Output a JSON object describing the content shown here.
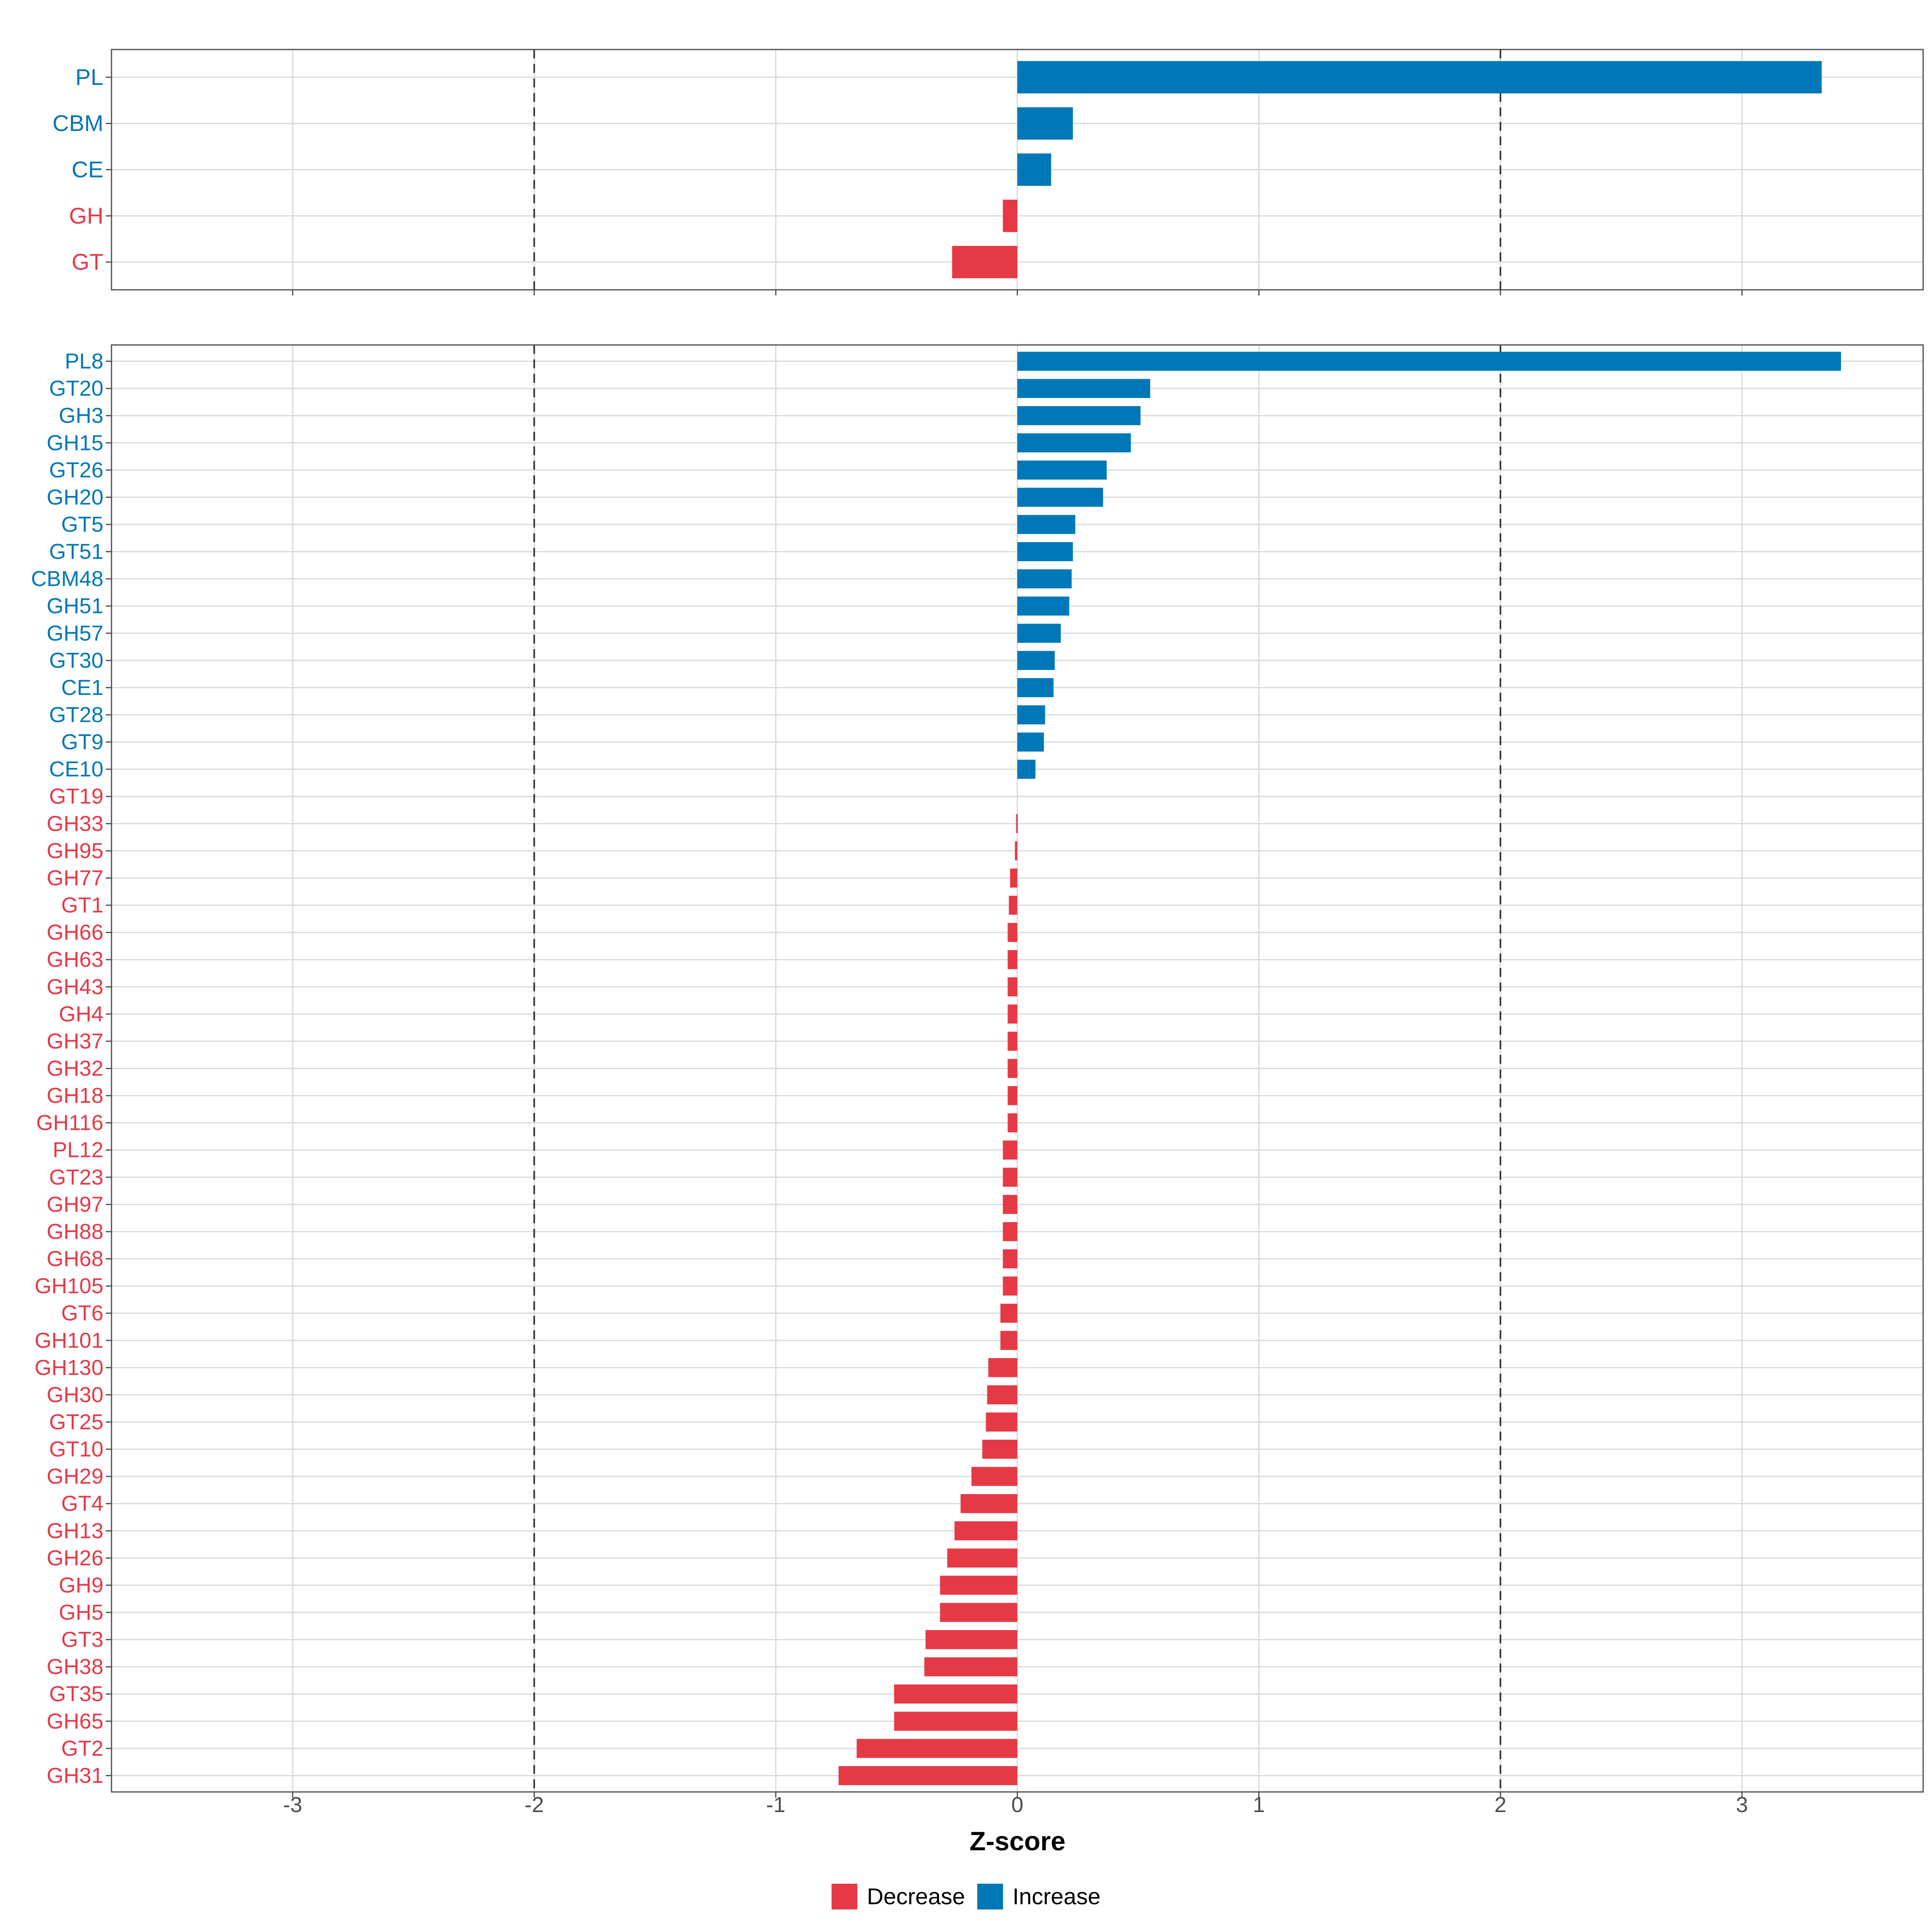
{
  "chart_data": [
    {
      "type": "bar",
      "orientation": "horizontal",
      "categories": [
        "PL",
        "CBM",
        "CE",
        "GH",
        "GT"
      ],
      "values": [
        3.33,
        0.23,
        0.14,
        -0.06,
        -0.27
      ],
      "xlim": [
        -3.75,
        3.75
      ],
      "reference_lines": [
        -2,
        2
      ]
    },
    {
      "type": "bar",
      "orientation": "horizontal",
      "categories": [
        "PL8",
        "GT20",
        "GH3",
        "GH15",
        "GT26",
        "GH20",
        "GT5",
        "GT51",
        "CBM48",
        "GH51",
        "GH57",
        "GT30",
        "CE1",
        "GT28",
        "GT9",
        "CE10",
        "GT19",
        "GH33",
        "GH95",
        "GH77",
        "GT1",
        "GH66",
        "GH63",
        "GH43",
        "GH4",
        "GH37",
        "GH32",
        "GH18",
        "GH116",
        "PL12",
        "GT23",
        "GH97",
        "GH88",
        "GH68",
        "GH105",
        "GT6",
        "GH101",
        "GH130",
        "GH30",
        "GT25",
        "GT10",
        "GH29",
        "GT4",
        "GH13",
        "GH26",
        "GH9",
        "GH5",
        "GT3",
        "GH38",
        "GT35",
        "GH65",
        "GT2",
        "GH31"
      ],
      "values": [
        3.41,
        0.55,
        0.51,
        0.47,
        0.37,
        0.355,
        0.24,
        0.23,
        0.225,
        0.215,
        0.18,
        0.155,
        0.15,
        0.115,
        0.11,
        0.075,
        0.0,
        -0.005,
        -0.01,
        -0.03,
        -0.035,
        -0.04,
        -0.04,
        -0.04,
        -0.04,
        -0.04,
        -0.04,
        -0.04,
        -0.04,
        -0.06,
        -0.06,
        -0.06,
        -0.06,
        -0.06,
        -0.06,
        -0.07,
        -0.07,
        -0.12,
        -0.125,
        -0.13,
        -0.145,
        -0.19,
        -0.235,
        -0.26,
        -0.29,
        -0.32,
        -0.32,
        -0.38,
        -0.385,
        -0.51,
        -0.51,
        -0.665,
        -0.74
      ],
      "xlabel": "Z-score",
      "xticks": [
        -3,
        -2,
        -1,
        0,
        1,
        2,
        3
      ],
      "xlim": [
        -3.75,
        3.75
      ],
      "reference_lines": [
        -2,
        2
      ]
    }
  ],
  "legend": {
    "decrease": {
      "label": "Decrease",
      "color": "#e63946"
    },
    "increase": {
      "label": "Increase",
      "color": "#0077b6"
    }
  },
  "colors": {
    "decrease": "#e63946",
    "increase": "#0077b6",
    "grid": "#d9d9d9",
    "axis": "#4d4d4d"
  }
}
